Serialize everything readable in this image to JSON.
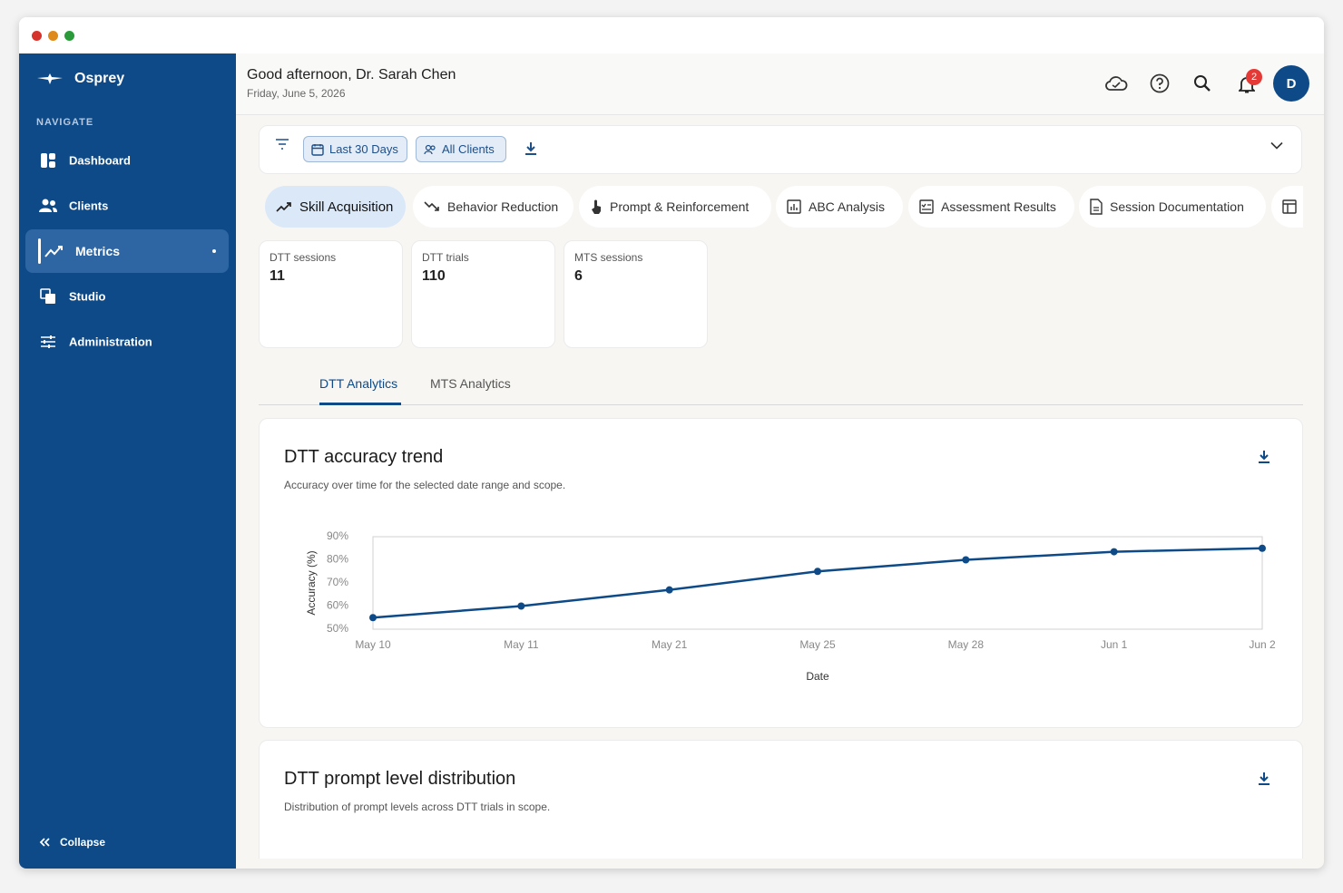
{
  "sidebar": {
    "brand": "Osprey",
    "section": "NAVIGATE",
    "items": [
      "Dashboard",
      "Clients",
      "Metrics",
      "Studio",
      "Administration"
    ],
    "collapse": "Collapse"
  },
  "header": {
    "greeting": "Good afternoon, Dr. Sarah Chen",
    "date": "Friday, June 5, 2026",
    "notifications": 2,
    "avatar": "D"
  },
  "filters": {
    "range": "Last 30 Days",
    "clients": "All Clients"
  },
  "tabs": [
    "Skill Acquisition",
    "Behavior Reduction",
    "Prompt & Reinforcement",
    "ABC Analysis",
    "Assessment Results",
    "Session Documentation"
  ],
  "stats": [
    {
      "label": "DTT sessions",
      "value": 11
    },
    {
      "label": "DTT trials",
      "value": 110
    },
    {
      "label": "MTS sessions",
      "value": 6
    }
  ],
  "subtabs": [
    "DTT Analytics",
    "MTS Analytics"
  ],
  "cards": [
    {
      "title": "DTT prompt level distribution",
      "subtitle": "Distribution of prompt levels across DTT trials in scope."
    }
  ],
  "chart_data": {
    "type": "line",
    "title": "DTT accuracy trend",
    "subtitle": "Accuracy over time for the selected date range and scope.",
    "x_label": "Date",
    "y_label": "Accuracy (%)",
    "categories": [
      "May 10",
      "May 11",
      "May 21",
      "May 25",
      "May 28",
      "Jun 1",
      "Jun 2"
    ],
    "values": [
      55,
      60,
      67,
      75,
      80,
      83.5,
      85
    ],
    "color": "#0d4a87",
    "ylim": [
      50,
      90
    ],
    "yticks": [
      {
        "value": 50,
        "label": "50%"
      },
      {
        "value": 60,
        "label": "60%"
      },
      {
        "value": 70,
        "label": "70%"
      },
      {
        "value": 80,
        "label": "80%"
      },
      {
        "value": 90,
        "label": "90%"
      }
    ],
    "grid": false
  }
}
